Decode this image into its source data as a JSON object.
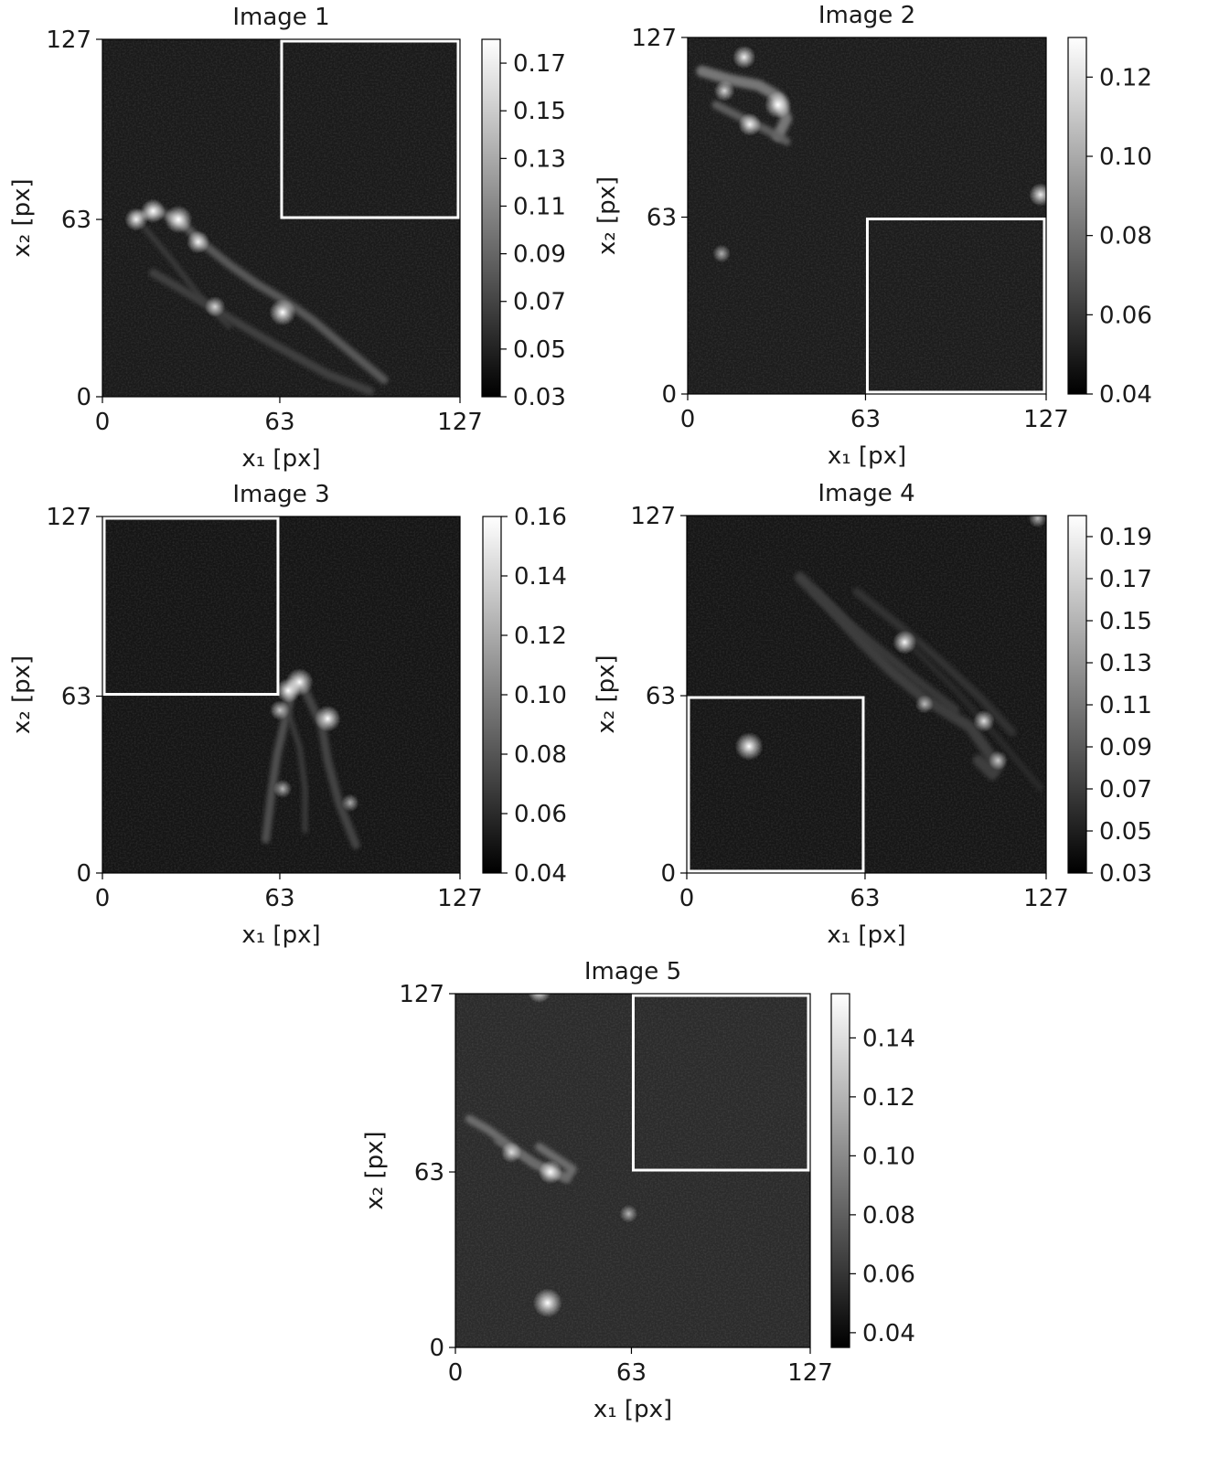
{
  "chart_data": [
    {
      "type": "heatmap",
      "title": "Image 1",
      "xlabel": "x₁ [px]",
      "ylabel": "x₂ [px]",
      "xticks": [
        "0",
        "63",
        "127"
      ],
      "yticks": [
        "0",
        "63",
        "127"
      ],
      "xlim": [
        0,
        127
      ],
      "ylim": [
        0,
        127
      ],
      "colorbar": {
        "range": [
          0.03,
          0.18
        ],
        "ticks": [
          "0.03",
          "0.05",
          "0.07",
          "0.09",
          "0.11",
          "0.13",
          "0.15",
          "0.17"
        ]
      },
      "background_level": 0.045,
      "highlight_box": {
        "x": [
          63,
          127
        ],
        "y": [
          63,
          127
        ]
      },
      "features": [
        {
          "type": "curve",
          "points": [
            [
              12,
              64
            ],
            [
              20,
              66
            ],
            [
              28,
              62
            ],
            [
              35,
              55
            ],
            [
              45,
              47
            ],
            [
              55,
              40
            ],
            [
              65,
              34
            ],
            [
              75,
              27
            ],
            [
              88,
              16
            ],
            [
              100,
              6
            ]
          ],
          "level": 0.085,
          "width": 3
        },
        {
          "type": "curve",
          "points": [
            [
              18,
              44
            ],
            [
              30,
              37
            ],
            [
              45,
              28
            ],
            [
              62,
              18
            ],
            [
              80,
              8
            ],
            [
              95,
              2
            ]
          ],
          "level": 0.07,
          "width": 3
        },
        {
          "type": "curve",
          "points": [
            [
              15,
              60
            ],
            [
              25,
              48
            ],
            [
              35,
              35
            ],
            [
              45,
              25
            ]
          ],
          "level": 0.065,
          "width": 2
        },
        {
          "type": "spot",
          "x": 12,
          "y": 63,
          "level": 0.13
        },
        {
          "type": "spot",
          "x": 18,
          "y": 66,
          "level": 0.14
        },
        {
          "type": "spot",
          "x": 27,
          "y": 63,
          "level": 0.17
        },
        {
          "type": "spot",
          "x": 34,
          "y": 55,
          "level": 0.13
        },
        {
          "type": "spot",
          "x": 40,
          "y": 32,
          "level": 0.11
        },
        {
          "type": "spot",
          "x": 64,
          "y": 30,
          "level": 0.16
        }
      ]
    },
    {
      "type": "heatmap",
      "title": "Image 2",
      "xlabel": "x₁ [px]",
      "ylabel": "x₂ [px]",
      "xticks": [
        "0",
        "63",
        "127"
      ],
      "yticks": [
        "0",
        "63",
        "127"
      ],
      "xlim": [
        0,
        127
      ],
      "ylim": [
        0,
        127
      ],
      "colorbar": {
        "range": [
          0.04,
          0.13
        ],
        "ticks": [
          "0.04",
          "0.06",
          "0.08",
          "0.10",
          "0.12"
        ]
      },
      "background_level": 0.05,
      "highlight_box": {
        "x": [
          63,
          127
        ],
        "y": [
          0,
          63
        ]
      },
      "features": [
        {
          "type": "curve",
          "points": [
            [
              5,
              115
            ],
            [
              15,
              112
            ],
            [
              25,
              110
            ],
            [
              32,
              106
            ],
            [
              35,
              98
            ],
            [
              32,
              92
            ]
          ],
          "level": 0.085,
          "width": 4
        },
        {
          "type": "curve",
          "points": [
            [
              10,
              103
            ],
            [
              20,
              98
            ],
            [
              28,
              94
            ],
            [
              35,
              90
            ]
          ],
          "level": 0.075,
          "width": 3
        },
        {
          "type": "spot",
          "x": 32,
          "y": 103,
          "level": 0.12
        },
        {
          "type": "spot",
          "x": 22,
          "y": 96,
          "level": 0.1
        },
        {
          "type": "spot",
          "x": 13,
          "y": 108,
          "level": 0.09
        },
        {
          "type": "spot",
          "x": 20,
          "y": 120,
          "level": 0.1
        },
        {
          "type": "spot",
          "x": 125,
          "y": 71,
          "level": 0.1
        },
        {
          "type": "spot",
          "x": 12,
          "y": 50,
          "level": 0.075
        }
      ]
    },
    {
      "type": "heatmap",
      "title": "Image 3",
      "xlabel": "x₁ [px]",
      "ylabel": "x₂ [px]",
      "xticks": [
        "0",
        "63",
        "127"
      ],
      "yticks": [
        "0",
        "63",
        "127"
      ],
      "xlim": [
        0,
        127
      ],
      "ylim": [
        0,
        127
      ],
      "colorbar": {
        "range": [
          0.04,
          0.16
        ],
        "ticks": [
          "0.04",
          "0.06",
          "0.08",
          "0.10",
          "0.12",
          "0.14",
          "0.16"
        ]
      },
      "background_level": 0.05,
      "highlight_box": {
        "x": [
          0,
          63
        ],
        "y": [
          63,
          127
        ]
      },
      "features": [
        {
          "type": "curve",
          "points": [
            [
              68,
              68
            ],
            [
              65,
              55
            ],
            [
              62,
              42
            ],
            [
              60,
              28
            ],
            [
              58,
              12
            ]
          ],
          "level": 0.08,
          "width": 3
        },
        {
          "type": "curve",
          "points": [
            [
              72,
              65
            ],
            [
              78,
              52
            ],
            [
              80,
              40
            ],
            [
              84,
              25
            ],
            [
              90,
              10
            ]
          ],
          "level": 0.075,
          "width": 3
        },
        {
          "type": "curve",
          "points": [
            [
              65,
              60
            ],
            [
              70,
              45
            ],
            [
              72,
              30
            ],
            [
              72,
              15
            ]
          ],
          "level": 0.07,
          "width": 2
        },
        {
          "type": "spot",
          "x": 70,
          "y": 68,
          "level": 0.15
        },
        {
          "type": "spot",
          "x": 66,
          "y": 65,
          "level": 0.13
        },
        {
          "type": "spot",
          "x": 80,
          "y": 55,
          "level": 0.14
        },
        {
          "type": "spot",
          "x": 63,
          "y": 58,
          "level": 0.1
        },
        {
          "type": "spot",
          "x": 64,
          "y": 30,
          "level": 0.09
        },
        {
          "type": "spot",
          "x": 88,
          "y": 25,
          "level": 0.085
        }
      ]
    },
    {
      "type": "heatmap",
      "title": "Image 4",
      "xlabel": "x₁ [px]",
      "ylabel": "x₂ [px]",
      "xticks": [
        "0",
        "63",
        "127"
      ],
      "yticks": [
        "0",
        "63",
        "127"
      ],
      "xlim": [
        0,
        127
      ],
      "ylim": [
        0,
        127
      ],
      "colorbar": {
        "range": [
          0.03,
          0.2
        ],
        "ticks": [
          "0.03",
          "0.05",
          "0.07",
          "0.09",
          "0.11",
          "0.13",
          "0.15",
          "0.17",
          "0.19"
        ]
      },
      "background_level": 0.045,
      "highlight_box": {
        "x": [
          0,
          63
        ],
        "y": [
          0,
          63
        ]
      },
      "features": [
        {
          "type": "curve",
          "points": [
            [
              40,
              105
            ],
            [
              50,
              95
            ],
            [
              62,
              82
            ],
            [
              72,
              72
            ],
            [
              84,
              62
            ],
            [
              100,
              52
            ],
            [
              110,
              38
            ],
            [
              108,
              35
            ],
            [
              103,
              40
            ]
          ],
          "level": 0.075,
          "width": 4
        },
        {
          "type": "curve",
          "points": [
            [
              45,
              100
            ],
            [
              58,
              88
            ],
            [
              70,
              78
            ],
            [
              82,
              68
            ],
            [
              95,
              58
            ]
          ],
          "level": 0.07,
          "width": 3
        },
        {
          "type": "curve",
          "points": [
            [
              60,
              100
            ],
            [
              75,
              88
            ],
            [
              90,
              75
            ],
            [
              104,
              62
            ],
            [
              115,
              50
            ]
          ],
          "level": 0.065,
          "width": 3
        },
        {
          "type": "curve",
          "points": [
            [
              80,
              80
            ],
            [
              95,
              65
            ],
            [
              110,
              48
            ],
            [
              125,
              30
            ]
          ],
          "level": 0.06,
          "width": 2
        },
        {
          "type": "spot",
          "x": 77,
          "y": 82,
          "level": 0.15
        },
        {
          "type": "spot",
          "x": 105,
          "y": 54,
          "level": 0.13
        },
        {
          "type": "spot",
          "x": 110,
          "y": 40,
          "level": 0.11
        },
        {
          "type": "spot",
          "x": 84,
          "y": 60,
          "level": 0.1
        },
        {
          "type": "spot",
          "x": 124,
          "y": 126,
          "level": 0.1
        },
        {
          "type": "spot",
          "x": 22,
          "y": 45,
          "level": 0.19
        }
      ]
    },
    {
      "type": "heatmap",
      "title": "Image 5",
      "xlabel": "x₁ [px]",
      "ylabel": "x₂ [px]",
      "xticks": [
        "0",
        "63",
        "127"
      ],
      "yticks": [
        "0",
        "63",
        "127"
      ],
      "xlim": [
        0,
        127
      ],
      "ylim": [
        0,
        127
      ],
      "colorbar": {
        "range": [
          0.035,
          0.155
        ],
        "ticks": [
          "0.04",
          "0.06",
          "0.08",
          "0.10",
          "0.12",
          "0.14"
        ]
      },
      "background_level": 0.055,
      "highlight_box": {
        "x": [
          63,
          127
        ],
        "y": [
          63,
          127
        ]
      },
      "features": [
        {
          "type": "curve",
          "points": [
            [
              5,
              82
            ],
            [
              12,
              78
            ],
            [
              20,
              72
            ],
            [
              28,
              66
            ],
            [
              34,
              63
            ],
            [
              40,
              61
            ],
            [
              42,
              64
            ],
            [
              36,
              68
            ],
            [
              30,
              72
            ]
          ],
          "level": 0.09,
          "width": 3
        },
        {
          "type": "curve",
          "points": [
            [
              15,
              74
            ],
            [
              24,
              69
            ],
            [
              33,
              64
            ],
            [
              40,
              60
            ]
          ],
          "level": 0.085,
          "width": 2
        },
        {
          "type": "spot",
          "x": 34,
          "y": 63,
          "level": 0.12
        },
        {
          "type": "spot",
          "x": 20,
          "y": 70,
          "level": 0.1
        },
        {
          "type": "spot",
          "x": 33,
          "y": 16,
          "level": 0.155
        },
        {
          "type": "spot",
          "x": 62,
          "y": 48,
          "level": 0.08
        },
        {
          "type": "spot",
          "x": 30,
          "y": 128,
          "level": 0.12
        }
      ]
    }
  ]
}
